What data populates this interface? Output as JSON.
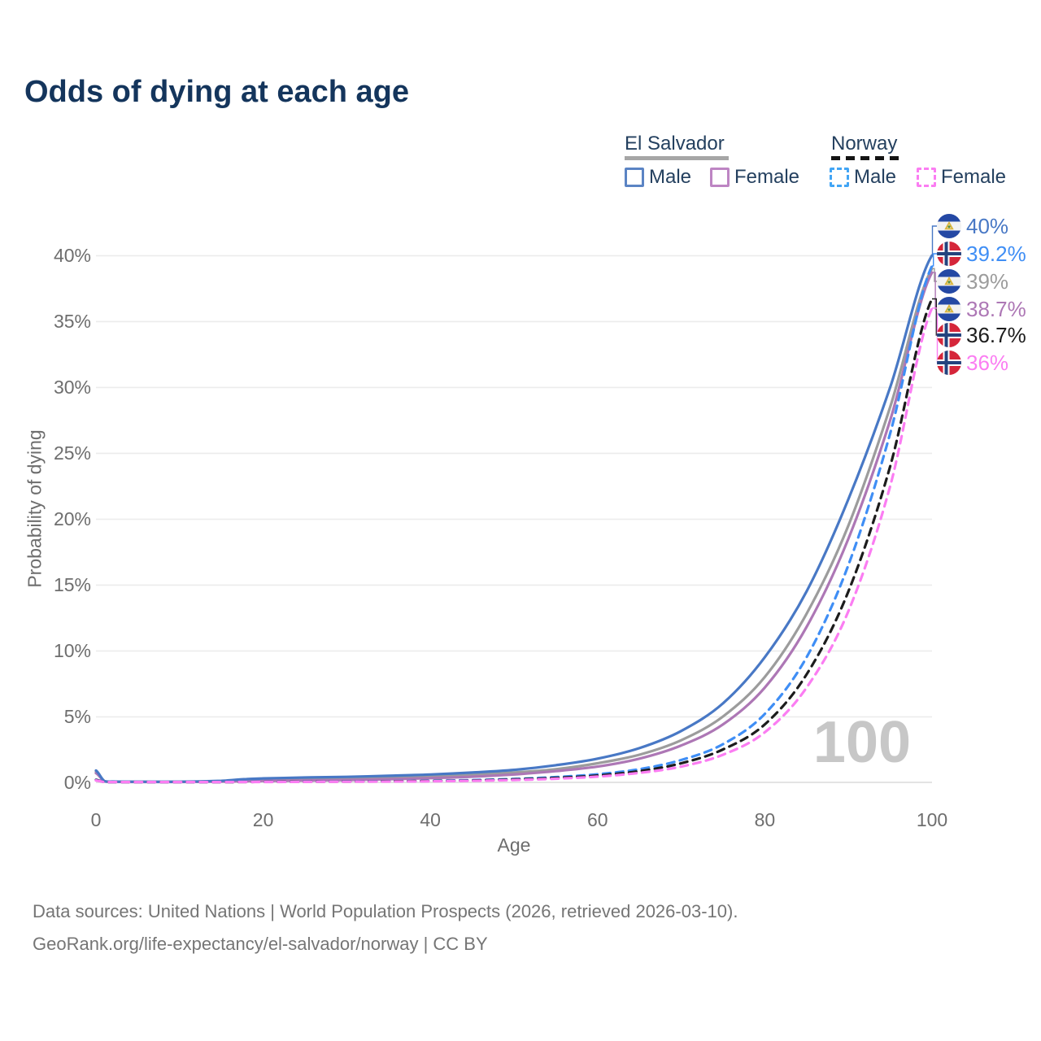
{
  "title": "Odds of dying at each age",
  "legend": {
    "groups": [
      {
        "label": "El Salvador",
        "line_style": "solid",
        "line_color": "#a6a6a6",
        "items": [
          {
            "label": "Male",
            "box_color": "#5b84c4"
          },
          {
            "label": "Female",
            "box_color": "#bd85c3"
          }
        ]
      },
      {
        "label": "Norway",
        "line_style": "dashed",
        "line_color": "#141414",
        "items": [
          {
            "label": "Male",
            "box_color": "#42a5f5"
          },
          {
            "label": "Female",
            "box_color": "#fb7df2"
          }
        ]
      }
    ]
  },
  "chart_data": {
    "type": "line",
    "title": "Odds of dying at each age",
    "xlabel": "Age",
    "ylabel": "Probability of dying",
    "xlim": [
      0,
      100
    ],
    "ylim_pct": [
      0,
      43
    ],
    "x_ticks": [
      0,
      20,
      40,
      60,
      80,
      100
    ],
    "y_ticks_pct": [
      0,
      5,
      10,
      15,
      20,
      25,
      30,
      35,
      40
    ],
    "grid": "horizontal",
    "watermark": "100",
    "ages": [
      0,
      1,
      2,
      5,
      10,
      15,
      18,
      20,
      25,
      30,
      35,
      40,
      45,
      50,
      55,
      60,
      65,
      70,
      75,
      80,
      85,
      90,
      95,
      100
    ],
    "series": [
      {
        "name": "El Salvador Male",
        "country": "El Salvador",
        "sex": "Male",
        "color": "#4878c5",
        "dashed": false,
        "end_label": "40%",
        "end_value_pct": 40.0,
        "values_pct": [
          0.9,
          0.1,
          0.06,
          0.05,
          0.05,
          0.12,
          0.25,
          0.3,
          0.37,
          0.42,
          0.5,
          0.6,
          0.75,
          0.95,
          1.3,
          1.8,
          2.6,
          3.9,
          6.0,
          9.5,
          14.5,
          21.5,
          30.0,
          40.0
        ]
      },
      {
        "name": "Norway Male",
        "country": "Norway",
        "sex": "Male",
        "color": "#3f8ef5",
        "dashed": true,
        "end_label": "39.2%",
        "end_value_pct": 39.2,
        "values_pct": [
          0.2,
          0.03,
          0.01,
          0.01,
          0.01,
          0.02,
          0.04,
          0.05,
          0.06,
          0.07,
          0.09,
          0.12,
          0.17,
          0.26,
          0.4,
          0.62,
          1.0,
          1.7,
          2.9,
          5.2,
          9.5,
          16.5,
          26.5,
          39.2
        ]
      },
      {
        "name": "El Salvador Both sexes",
        "country": "El Salvador",
        "sex": "Both",
        "color": "#9c9c9c",
        "dashed": false,
        "end_label": "39%",
        "end_value_pct": 39.0,
        "values_pct": [
          0.8,
          0.09,
          0.05,
          0.04,
          0.04,
          0.09,
          0.16,
          0.2,
          0.25,
          0.3,
          0.36,
          0.45,
          0.57,
          0.75,
          1.0,
          1.45,
          2.1,
          3.2,
          5.0,
          8.0,
          12.8,
          19.5,
          28.5,
          39.0
        ]
      },
      {
        "name": "El Salvador Female",
        "country": "El Salvador",
        "sex": "Female",
        "color": "#ad77b5",
        "dashed": false,
        "end_label": "38.7%",
        "end_value_pct": 38.7,
        "values_pct": [
          0.7,
          0.08,
          0.04,
          0.03,
          0.03,
          0.06,
          0.09,
          0.11,
          0.14,
          0.18,
          0.24,
          0.32,
          0.43,
          0.6,
          0.85,
          1.2,
          1.8,
          2.8,
          4.4,
          7.2,
          11.8,
          18.5,
          27.5,
          38.7
        ]
      },
      {
        "name": "Norway Both sexes",
        "country": "Norway",
        "sex": "Both",
        "color": "#1c1c1c",
        "dashed": true,
        "end_label": "36.7%",
        "end_value_pct": 36.7,
        "values_pct": [
          0.18,
          0.02,
          0.01,
          0.01,
          0.01,
          0.02,
          0.03,
          0.04,
          0.05,
          0.06,
          0.08,
          0.1,
          0.14,
          0.22,
          0.34,
          0.52,
          0.85,
          1.45,
          2.5,
          4.4,
          8.2,
          14.5,
          24.0,
          36.7
        ]
      },
      {
        "name": "Norway Female",
        "country": "Norway",
        "sex": "Female",
        "color": "#fb7df2",
        "dashed": true,
        "end_label": "36%",
        "end_value_pct": 36.0,
        "values_pct": [
          0.15,
          0.02,
          0.01,
          0.01,
          0.01,
          0.02,
          0.03,
          0.03,
          0.04,
          0.05,
          0.06,
          0.08,
          0.12,
          0.18,
          0.28,
          0.44,
          0.72,
          1.2,
          2.1,
          3.8,
          7.2,
          13.0,
          22.5,
          36.0
        ]
      }
    ]
  },
  "footer": {
    "line1": "Data sources: United Nations | World Population Prospects (2026, retrieved 2026-03-10).",
    "line2": "GeoRank.org/life-expectancy/el-salvador/norway | CC BY"
  }
}
